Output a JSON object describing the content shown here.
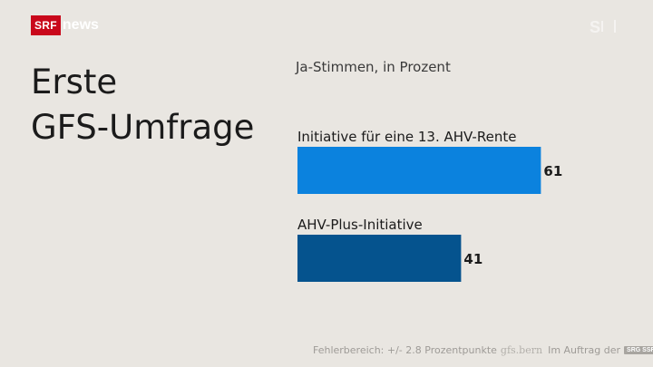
{
  "brand": {
    "srf": "SRF",
    "news": "news",
    "ssr_badge": "SRG SSR"
  },
  "title_lines": [
    "Erste",
    "GFS-Umfrage"
  ],
  "chart_data": {
    "type": "bar",
    "orientation": "horizontal",
    "title": "Erste GFS-Umfrage",
    "subtitle": "Ja-Stimmen, in Prozent",
    "categories": [
      "Initiative für eine 13. AHV-Rente",
      "AHV-Plus-Initiative"
    ],
    "values": [
      61,
      41
    ],
    "colors": [
      "#0b82de",
      "#05538e"
    ],
    "xlim": [
      0,
      100
    ],
    "grid": false
  },
  "footer": {
    "margin": "Fehlerbereich: +/- 2.8 Prozentpunkte",
    "gfs_logo": "gfs.bern",
    "commissioned": "Im Auftrag der"
  },
  "colors": {
    "background": "#e9e6e1",
    "srf_red": "#c9081b"
  },
  "icons": {
    "channel_bug": "tv-channel-icon"
  }
}
